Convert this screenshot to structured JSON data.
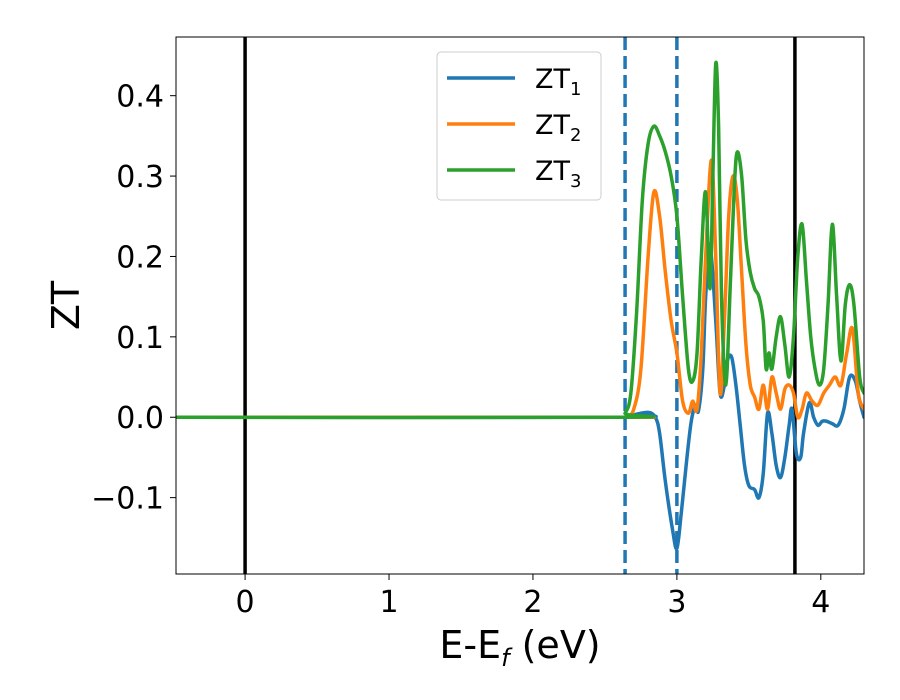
{
  "chart_data": {
    "type": "line",
    "xlabel_main": "E-E",
    "xlabel_sub": "f",
    "xlabel_unit": " (eV)",
    "ylabel": "ZT",
    "xlim": [
      -0.48,
      4.3
    ],
    "ylim": [
      -0.195,
      0.473
    ],
    "x_ticks": [
      0,
      1,
      2,
      3,
      4
    ],
    "x_tick_labels": [
      "0",
      "1",
      "2",
      "3",
      "4"
    ],
    "y_ticks": [
      -0.1,
      0.0,
      0.1,
      0.2,
      0.3,
      0.4
    ],
    "y_tick_labels": [
      "−0.1",
      "0.0",
      "0.1",
      "0.2",
      "0.3",
      "0.4"
    ],
    "grid": false,
    "legend_position": "top-center",
    "vertical_lines": [
      {
        "x": 0.0,
        "style": "solid",
        "color": "#000000"
      },
      {
        "x": 3.82,
        "style": "solid",
        "color": "#000000"
      },
      {
        "x": 2.64,
        "style": "dashed",
        "color": "#1f77b4"
      },
      {
        "x": 3.0,
        "style": "dashed",
        "color": "#1f77b4"
      }
    ],
    "series": [
      {
        "name": "ZT",
        "name_sub": "1",
        "color": "#1f77b4",
        "x": [
          -0.48,
          2.6,
          2.7,
          2.8,
          2.85,
          2.88,
          2.92,
          2.97,
          3.0,
          3.03,
          3.07,
          3.1,
          3.13,
          3.15,
          3.18,
          3.2,
          3.23,
          3.27,
          3.3,
          3.33,
          3.35,
          3.38,
          3.41,
          3.44,
          3.47,
          3.5,
          3.54,
          3.57,
          3.6,
          3.63,
          3.66,
          3.69,
          3.72,
          3.75,
          3.78,
          3.8,
          3.83,
          3.86,
          3.88,
          3.92,
          3.95,
          3.98,
          4.01,
          4.04,
          4.08,
          4.12,
          4.16,
          4.2,
          4.24,
          4.27,
          4.3
        ],
        "y": [
          0.0,
          0.0,
          0.003,
          0.006,
          0.0,
          -0.02,
          -0.08,
          -0.14,
          -0.163,
          -0.12,
          -0.05,
          -0.005,
          0.015,
          0.008,
          0.06,
          0.15,
          0.215,
          0.12,
          0.03,
          0.04,
          0.07,
          0.075,
          0.04,
          -0.01,
          -0.06,
          -0.085,
          -0.09,
          -0.1,
          -0.07,
          0.005,
          -0.02,
          -0.06,
          -0.075,
          -0.05,
          -0.01,
          0.01,
          -0.045,
          -0.05,
          -0.02,
          0.018,
          0.0,
          -0.01,
          -0.005,
          -0.005,
          -0.008,
          -0.01,
          0.01,
          0.05,
          0.045,
          0.02,
          0.0
        ]
      },
      {
        "name": "ZT",
        "name_sub": "2",
        "color": "#ff7f0e",
        "x": [
          -0.48,
          2.6,
          2.65,
          2.7,
          2.75,
          2.8,
          2.84,
          2.88,
          2.92,
          2.96,
          3.0,
          3.04,
          3.08,
          3.11,
          3.14,
          3.17,
          3.2,
          3.24,
          3.27,
          3.3,
          3.33,
          3.36,
          3.39,
          3.42,
          3.45,
          3.48,
          3.51,
          3.54,
          3.57,
          3.6,
          3.63,
          3.66,
          3.69,
          3.72,
          3.75,
          3.78,
          3.81,
          3.84,
          3.87,
          3.9,
          3.94,
          3.98,
          4.02,
          4.06,
          4.1,
          4.14,
          4.18,
          4.22,
          4.26,
          4.3
        ],
        "y": [
          0.0,
          0.0,
          0.001,
          0.01,
          0.06,
          0.2,
          0.28,
          0.25,
          0.18,
          0.12,
          0.08,
          0.02,
          0.005,
          0.02,
          0.01,
          0.08,
          0.2,
          0.32,
          0.2,
          0.03,
          0.12,
          0.25,
          0.3,
          0.27,
          0.18,
          0.09,
          0.04,
          0.025,
          0.01,
          0.04,
          0.01,
          0.05,
          0.03,
          0.01,
          0.035,
          0.04,
          0.03,
          0.0,
          0.01,
          0.03,
          0.02,
          0.015,
          0.03,
          0.04,
          0.05,
          0.04,
          0.08,
          0.11,
          0.03,
          0.01
        ]
      },
      {
        "name": "ZT",
        "name_sub": "3",
        "color": "#2ca02c",
        "x": [
          -0.48,
          2.6,
          2.64,
          2.68,
          2.72,
          2.76,
          2.8,
          2.84,
          2.88,
          2.92,
          2.96,
          3.0,
          3.04,
          3.08,
          3.11,
          3.14,
          3.17,
          3.2,
          3.23,
          3.25,
          3.27,
          3.29,
          3.31,
          3.34,
          3.37,
          3.4,
          3.42,
          3.45,
          3.48,
          3.51,
          3.54,
          3.57,
          3.6,
          3.62,
          3.64,
          3.66,
          3.69,
          3.72,
          3.75,
          3.78,
          3.81,
          3.84,
          3.87,
          3.9,
          3.93,
          3.96,
          3.99,
          4.02,
          4.05,
          4.08,
          4.11,
          4.14,
          4.17,
          4.2,
          4.23,
          4.27,
          4.3
        ],
        "y": [
          0.0,
          0.0,
          0.005,
          0.03,
          0.13,
          0.27,
          0.34,
          0.362,
          0.35,
          0.33,
          0.3,
          0.25,
          0.15,
          0.06,
          0.045,
          0.08,
          0.2,
          0.28,
          0.16,
          0.3,
          0.44,
          0.36,
          0.15,
          0.04,
          0.16,
          0.29,
          0.33,
          0.3,
          0.22,
          0.18,
          0.16,
          0.15,
          0.12,
          0.06,
          0.08,
          0.06,
          0.1,
          0.125,
          0.09,
          0.05,
          0.1,
          0.2,
          0.24,
          0.17,
          0.1,
          0.06,
          0.04,
          0.06,
          0.14,
          0.24,
          0.15,
          0.07,
          0.14,
          0.165,
          0.14,
          0.05,
          0.03
        ]
      }
    ]
  }
}
